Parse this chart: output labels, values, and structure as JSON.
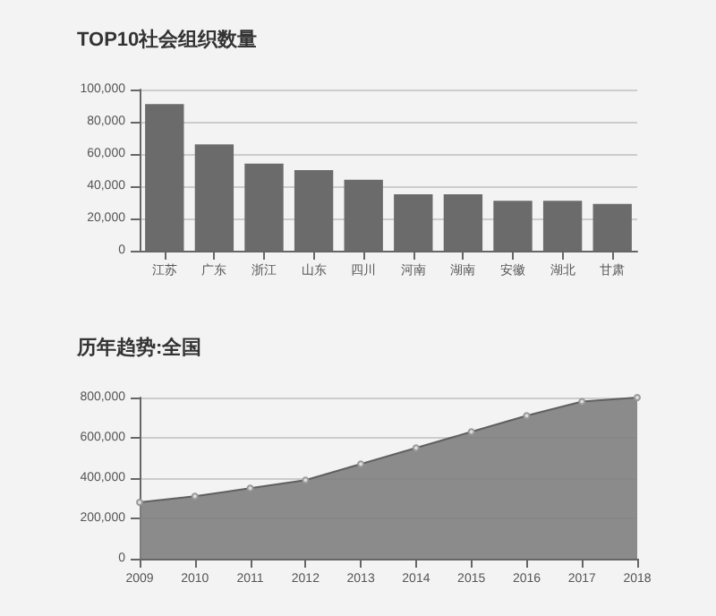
{
  "chart_data": [
    {
      "type": "bar",
      "title": "TOP10社会组织数量",
      "categories": [
        "江苏",
        "广东",
        "浙江",
        "山东",
        "四川",
        "河南",
        "湖南",
        "安徽",
        "湖北",
        "甘肃"
      ],
      "series": [
        {
          "color": "#6b6b6b",
          "values": [
            91000,
            66000,
            54000,
            50000,
            44000,
            35000,
            35000,
            31000,
            31000,
            29000
          ]
        }
      ],
      "ylim": [
        0,
        100000
      ],
      "yticks": [
        0,
        {
          "value": 20000,
          "label": "20,000"
        },
        {
          "value": 40000,
          "label": "40,000"
        },
        {
          "value": 60000,
          "label": "60,000"
        },
        {
          "value": 80000,
          "label": "80,000"
        },
        {
          "value": 100000,
          "label": "100,000"
        }
      ],
      "grid": "y"
    },
    {
      "type": "area",
      "title": "历年趋势:全国",
      "categories": [
        "2009",
        "2010",
        "2011",
        "2012",
        "2013",
        "2014",
        "2015",
        "2016",
        "2017",
        "2018"
      ],
      "series": [
        {
          "color": "#808080",
          "values": [
            280000,
            310000,
            350000,
            390000,
            470000,
            550000,
            630000,
            710000,
            780000,
            800000
          ]
        }
      ],
      "ylim": [
        0,
        800000
      ],
      "yticks": [
        0,
        {
          "value": 200000,
          "label": "200,000"
        },
        {
          "value": 400000,
          "label": "400,000"
        },
        {
          "value": 600000,
          "label": "600,000"
        },
        {
          "value": 800000,
          "label": "800,000"
        }
      ],
      "grid": "y",
      "marker": "circle"
    }
  ]
}
